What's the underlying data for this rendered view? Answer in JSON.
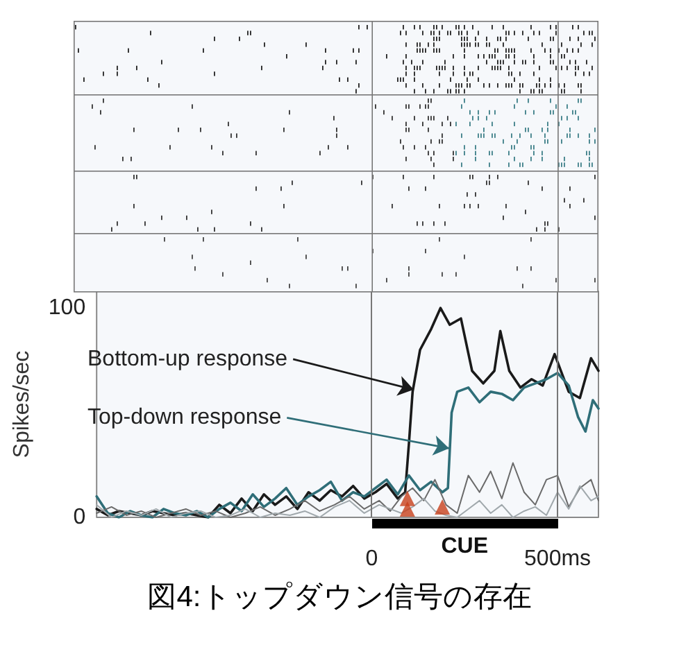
{
  "chart_data": {
    "type": "line",
    "title": "図4:トップダウン信号の存在",
    "ylabel": "Spikes/sec",
    "xlim": [
      -740,
      610
    ],
    "xticks": [
      0,
      {
        "value": 500,
        "label": "500ms"
      }
    ],
    "ylim": [
      0,
      108
    ],
    "yticks": [
      0,
      100
    ],
    "grid": false,
    "marker": "none",
    "line_style": "solid",
    "series": [
      {
        "color": "#1a1a1a",
        "x": [
          -740,
          -710,
          -680,
          -650,
          -620,
          -590,
          -560,
          -530,
          -500,
          -470,
          -440,
          -410,
          -380,
          -350,
          -320,
          -290,
          -260,
          -230,
          -200,
          -170,
          -140,
          -110,
          -80,
          -50,
          -20,
          10,
          40,
          70,
          90,
          100,
          110,
          130,
          160,
          185,
          210,
          240,
          270,
          300,
          330,
          346,
          370,
          400,
          430,
          460,
          492,
          530,
          560,
          590,
          610
        ],
        "values": [
          4,
          1,
          3,
          2,
          1,
          3,
          2,
          1,
          2,
          1,
          0,
          6,
          2,
          9,
          3,
          11,
          6,
          10,
          4,
          12,
          8,
          13,
          10,
          15,
          9,
          12,
          16,
          9,
          12,
          35,
          60,
          80,
          90,
          100,
          92,
          95,
          70,
          64,
          70,
          89,
          70,
          62,
          66,
          63,
          78,
          60,
          57,
          76,
          70
        ]
      },
      {
        "color": "#2f6e78",
        "x": [
          -740,
          -710,
          -680,
          -650,
          -620,
          -590,
          -560,
          -530,
          -500,
          -470,
          -440,
          -410,
          -380,
          -350,
          -320,
          -290,
          -260,
          -230,
          -200,
          -170,
          -140,
          -110,
          -80,
          -50,
          -20,
          10,
          40,
          70,
          100,
          130,
          160,
          190,
          205,
          215,
          230,
          260,
          290,
          320,
          350,
          380,
          410,
          440,
          470,
          500,
          530,
          555,
          575,
          595,
          610
        ],
        "values": [
          10,
          2,
          0,
          3,
          1,
          0,
          4,
          2,
          1,
          3,
          0,
          4,
          7,
          3,
          11,
          5,
          9,
          14,
          6,
          10,
          13,
          17,
          8,
          12,
          10,
          14,
          18,
          11,
          20,
          13,
          17,
          12,
          14,
          50,
          60,
          62,
          55,
          60,
          59,
          56,
          62,
          64,
          66,
          69,
          63,
          48,
          41,
          56,
          52
        ]
      },
      {
        "color": "#6a6a6a",
        "x": [
          -740,
          -700,
          -660,
          -620,
          -580,
          -540,
          -500,
          -460,
          -420,
          -380,
          -340,
          -300,
          -260,
          -220,
          -180,
          -140,
          -100,
          -60,
          -20,
          20,
          50,
          80,
          110,
          140,
          170,
          200,
          230,
          260,
          290,
          320,
          350,
          380,
          410,
          440,
          470,
          500,
          530,
          560,
          590,
          610
        ],
        "values": [
          2,
          5,
          1,
          3,
          0,
          2,
          4,
          1,
          3,
          0,
          2,
          5,
          1,
          4,
          8,
          3,
          6,
          10,
          4,
          8,
          3,
          10,
          14,
          8,
          18,
          6,
          2,
          20,
          12,
          22,
          9,
          26,
          12,
          6,
          18,
          20,
          5,
          14,
          18,
          8
        ]
      },
      {
        "color": "#a0a8ac",
        "x": [
          -740,
          -700,
          -660,
          -620,
          -580,
          -540,
          -500,
          -460,
          -420,
          -380,
          -340,
          -300,
          -260,
          -220,
          -180,
          -140,
          -100,
          -60,
          -20,
          20,
          50,
          80,
          110,
          140,
          170,
          200,
          230,
          260,
          290,
          320,
          350,
          380,
          410,
          440,
          470,
          500,
          530,
          560,
          590,
          610
        ],
        "values": [
          6,
          0,
          3,
          1,
          4,
          0,
          2,
          3,
          0,
          1,
          4,
          0,
          2,
          1,
          3,
          0,
          5,
          8,
          2,
          6,
          4,
          2,
          5,
          9,
          3,
          1,
          0,
          4,
          8,
          2,
          6,
          0,
          3,
          5,
          1,
          12,
          4,
          15,
          8,
          10
        ]
      },
      {
        "type": "scatter",
        "marker": "triangle",
        "color": "#c8401c",
        "x": [
          96,
          96,
          190
        ],
        "values": [
          9,
          4,
          5
        ]
      }
    ],
    "ref_lines": [
      {
        "axis": "x",
        "value": 0,
        "color": "#777777"
      },
      {
        "axis": "x",
        "value": 500,
        "color": "#777777"
      }
    ],
    "annotations": [
      {
        "text": "Bottom-up response",
        "x": 113,
        "y": 61
      },
      {
        "text": "Top-down response",
        "x": 208,
        "y": 33
      },
      "CUE"
    ]
  }
}
